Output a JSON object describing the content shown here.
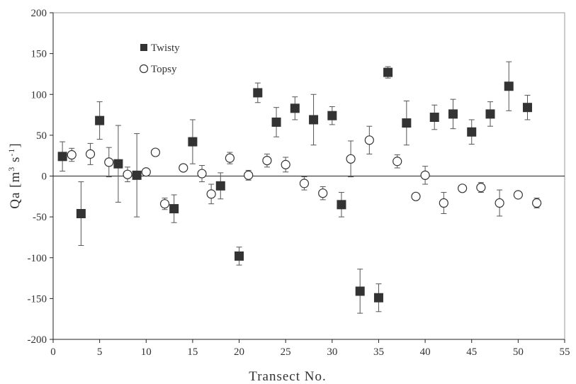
{
  "chart_data": {
    "type": "scatter",
    "title": "",
    "xlabel": "Transect No.",
    "ylabel": "Qa [m³ s⁻¹]",
    "ylabel_parts": {
      "main": "Qa  [m",
      "sup1": "3",
      "mid": " s",
      "sup2": "-1",
      "end": "]"
    },
    "xlim": [
      0,
      55
    ],
    "ylim": [
      -200,
      200
    ],
    "xticks": [
      0,
      5,
      10,
      15,
      20,
      25,
      30,
      35,
      40,
      45,
      50,
      55
    ],
    "yticks": [
      -200,
      -150,
      -100,
      -50,
      0,
      50,
      100,
      150,
      200
    ],
    "xtick_labels": [
      "0",
      "5",
      "10",
      "15",
      "20",
      "25",
      "30",
      "35",
      "40",
      "45",
      "50",
      "55"
    ],
    "ytick_labels": [
      "-200",
      "-150",
      "-100",
      "-50",
      "0",
      "50",
      "100",
      "150",
      "200"
    ],
    "grid": false,
    "legend_position": "top-left",
    "series": [
      {
        "name": "Twisty",
        "marker": "filled-square",
        "color": "#333333",
        "points": [
          {
            "x": 1,
            "y": 24,
            "err": 18
          },
          {
            "x": 3,
            "y": -46,
            "err": 39
          },
          {
            "x": 5,
            "y": 68,
            "err": 23
          },
          {
            "x": 7,
            "y": 15,
            "err": 47
          },
          {
            "x": 9,
            "y": 1,
            "err": 51
          },
          {
            "x": 13,
            "y": -40,
            "err": 17
          },
          {
            "x": 15,
            "y": 42,
            "err": 27
          },
          {
            "x": 18,
            "y": -12,
            "err": 16
          },
          {
            "x": 20,
            "y": -98,
            "err": 11
          },
          {
            "x": 22,
            "y": 102,
            "err": 12
          },
          {
            "x": 24,
            "y": 66,
            "err": 18
          },
          {
            "x": 26,
            "y": 83,
            "err": 14
          },
          {
            "x": 28,
            "y": 69,
            "err": 31
          },
          {
            "x": 30,
            "y": 74,
            "err": 11
          },
          {
            "x": 31,
            "y": -35,
            "err": 15
          },
          {
            "x": 33,
            "y": -141,
            "err": 27
          },
          {
            "x": 35,
            "y": -149,
            "err": 17
          },
          {
            "x": 36,
            "y": 127,
            "err": 7
          },
          {
            "x": 38,
            "y": 65,
            "err": 27
          },
          {
            "x": 41,
            "y": 72,
            "err": 15
          },
          {
            "x": 43,
            "y": 76,
            "err": 18
          },
          {
            "x": 45,
            "y": 54,
            "err": 15
          },
          {
            "x": 47,
            "y": 76,
            "err": 15
          },
          {
            "x": 49,
            "y": 110,
            "err": 30
          },
          {
            "x": 51,
            "y": 84,
            "err": 15
          }
        ]
      },
      {
        "name": "Topsy",
        "marker": "open-circle",
        "color": "#333333",
        "points": [
          {
            "x": 2,
            "y": 26,
            "err": 8
          },
          {
            "x": 4,
            "y": 27,
            "err": 13
          },
          {
            "x": 6,
            "y": 17,
            "err": 18
          },
          {
            "x": 8,
            "y": 2,
            "err": 9
          },
          {
            "x": 10,
            "y": 5,
            "err": 3
          },
          {
            "x": 11,
            "y": 29,
            "err": 0
          },
          {
            "x": 12,
            "y": -34,
            "err": 7
          },
          {
            "x": 14,
            "y": 10,
            "err": 0
          },
          {
            "x": 16,
            "y": 3,
            "err": 10
          },
          {
            "x": 17,
            "y": -22,
            "err": 12
          },
          {
            "x": 19,
            "y": 22,
            "err": 7
          },
          {
            "x": 21,
            "y": 1,
            "err": 6
          },
          {
            "x": 23,
            "y": 19,
            "err": 8
          },
          {
            "x": 25,
            "y": 14,
            "err": 9
          },
          {
            "x": 27,
            "y": -9,
            "err": 8
          },
          {
            "x": 29,
            "y": -21,
            "err": 8
          },
          {
            "x": 32,
            "y": 21,
            "err": 22
          },
          {
            "x": 34,
            "y": 44,
            "err": 17
          },
          {
            "x": 37,
            "y": 18,
            "err": 8
          },
          {
            "x": 39,
            "y": -25,
            "err": 0
          },
          {
            "x": 40,
            "y": 1,
            "err": 11
          },
          {
            "x": 42,
            "y": -33,
            "err": 13
          },
          {
            "x": 44,
            "y": -15,
            "err": 0
          },
          {
            "x": 46,
            "y": -14,
            "err": 6
          },
          {
            "x": 48,
            "y": -33,
            "err": 16
          },
          {
            "x": 50,
            "y": -23,
            "err": 0
          },
          {
            "x": 52,
            "y": -33,
            "err": 6
          }
        ]
      }
    ]
  }
}
